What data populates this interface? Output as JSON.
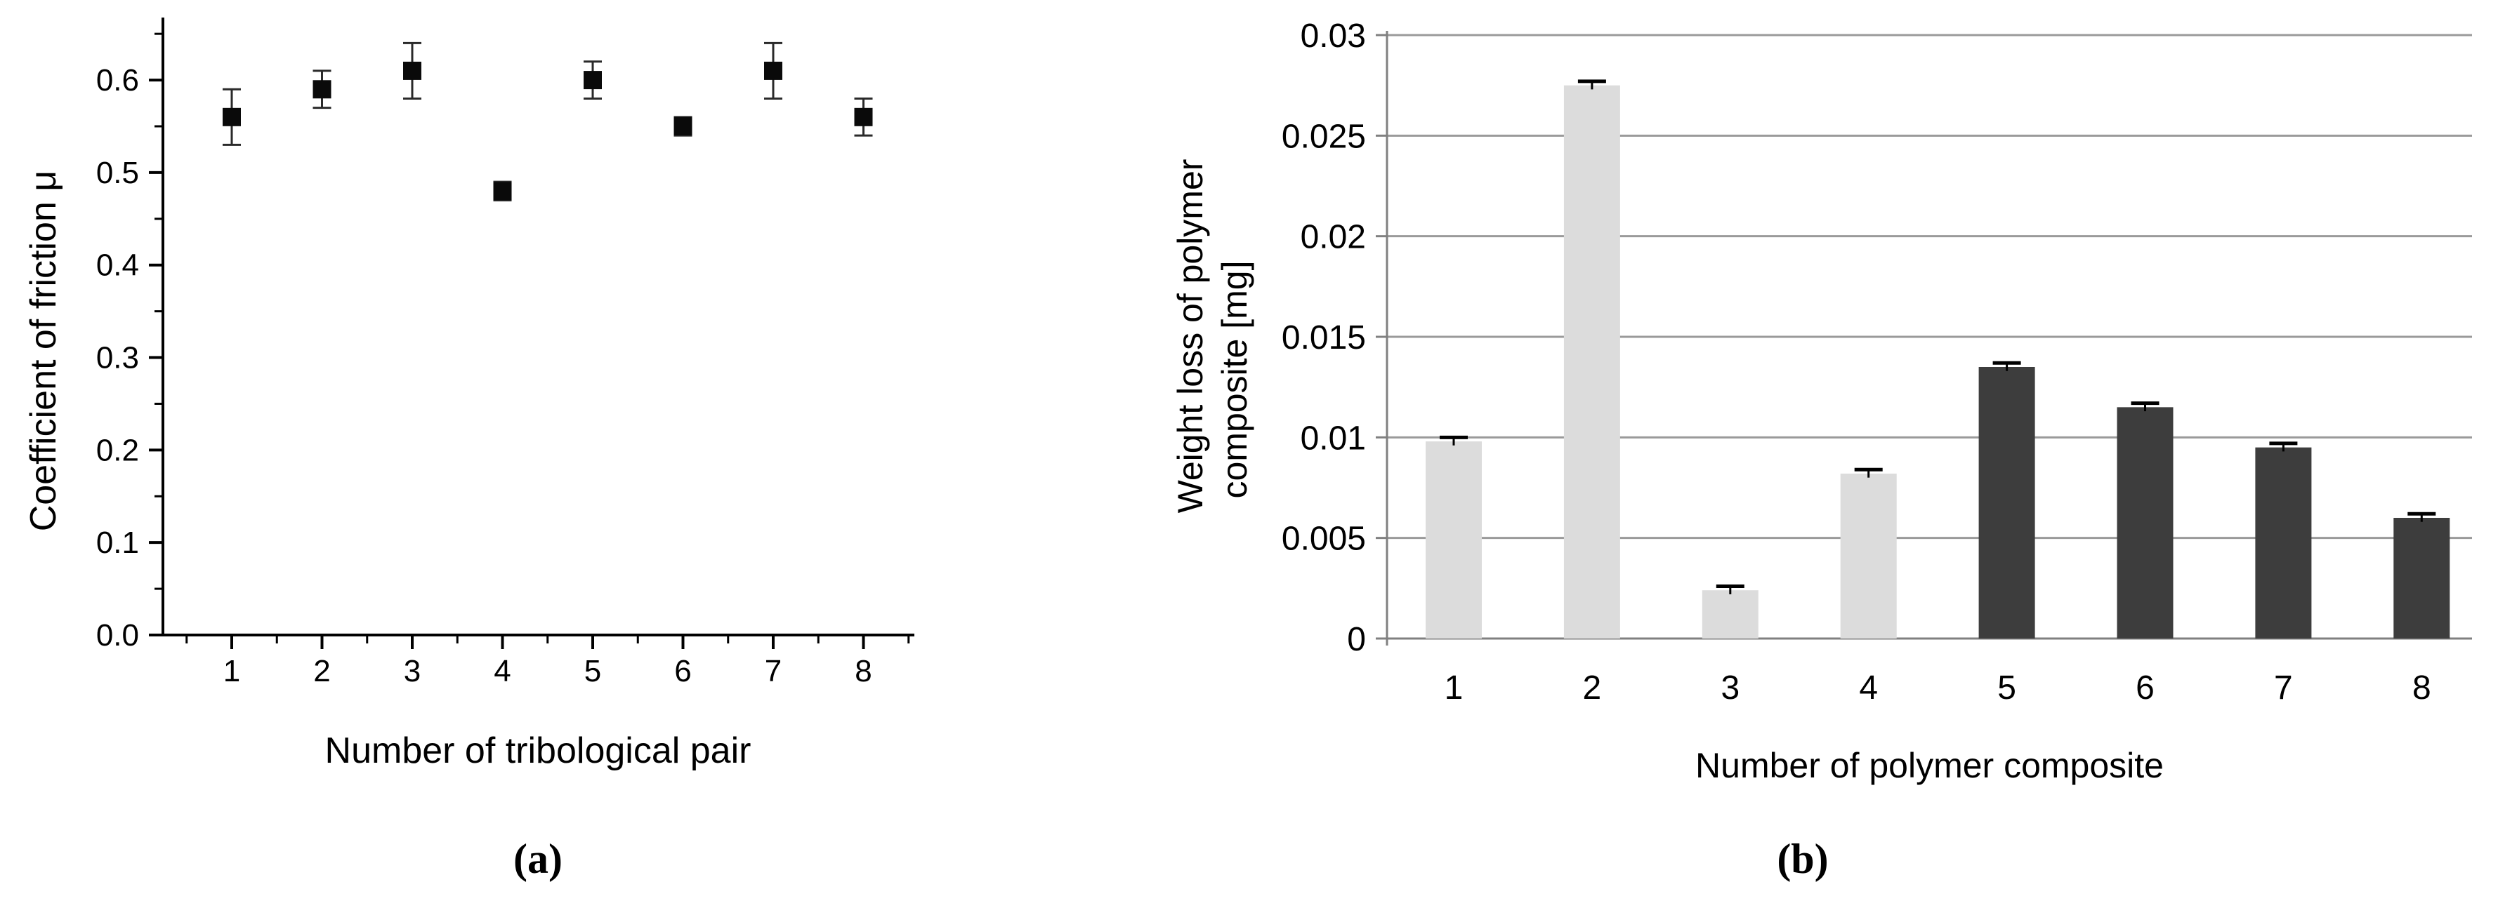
{
  "figure": {
    "captions": {
      "a": "(a)",
      "b": "(b)"
    }
  },
  "chart_data": [
    {
      "id": "friction-scatter",
      "type": "scatter",
      "title": "",
      "xlabel": "Number of tribological pair",
      "ylabel": "Coefficient of friction μ",
      "caption": "(a)",
      "x": [
        1,
        2,
        3,
        4,
        5,
        6,
        7,
        8
      ],
      "y": [
        0.56,
        0.59,
        0.61,
        0.48,
        0.6,
        0.55,
        0.61,
        0.56
      ],
      "yerr": [
        0.03,
        0.02,
        0.03,
        0.01,
        0.02,
        0.01,
        0.03,
        0.02
      ],
      "xlim": [
        0.25,
        8.75
      ],
      "ylim": [
        0,
        0.66
      ],
      "yticks": [
        0.0,
        0.1,
        0.2,
        0.3,
        0.4,
        0.5,
        0.6
      ],
      "ytick_labels": [
        "0.0",
        "0.1",
        "0.2",
        "0.3",
        "0.4",
        "0.5",
        "0.6"
      ],
      "y_minor_ticks": [
        0.05,
        0.15,
        0.25,
        0.35,
        0.45,
        0.55,
        0.65
      ],
      "xticks": [
        1,
        2,
        3,
        4,
        5,
        6,
        7,
        8
      ],
      "xtick_labels": [
        "1",
        "2",
        "3",
        "4",
        "5",
        "6",
        "7",
        "8"
      ],
      "x_minor_ticks": [
        0.5,
        1.5,
        2.5,
        3.5,
        4.5,
        5.5,
        6.5,
        7.5,
        8.5
      ],
      "grid": false,
      "legend": null,
      "marker": "square",
      "marker_color": "#0a0a0a",
      "error_bar_color": "#2a2a2a",
      "axis_color": "#000000"
    },
    {
      "id": "weight-loss-bar",
      "type": "bar",
      "title": "",
      "xlabel": "Number of polymer composite",
      "ylabel_lines": [
        "Weight  loss of polymer",
        "composite [mg]"
      ],
      "caption": "(b)",
      "categories": [
        "1",
        "2",
        "3",
        "4",
        "5",
        "6",
        "7",
        "8"
      ],
      "values": [
        0.0098,
        0.0275,
        0.0024,
        0.0082,
        0.0135,
        0.0115,
        0.0095,
        0.006
      ],
      "errors": [
        0.0002,
        0.0002,
        0.0002,
        0.0002,
        0.0002,
        0.0002,
        0.0002,
        0.0002
      ],
      "bar_colors": [
        "#dcdcdc",
        "#dcdcdc",
        "#dcdcdc",
        "#dcdcdc",
        "#3d3d3d",
        "#3d3d3d",
        "#3d3d3d",
        "#3d3d3d"
      ],
      "ylim": [
        0,
        0.03
      ],
      "yticks": [
        0,
        0.005,
        0.01,
        0.015,
        0.02,
        0.025,
        0.03
      ],
      "ytick_labels": [
        "0",
        "0.005",
        "0.01",
        "0.015",
        "0.02",
        "0.025",
        "0.03"
      ],
      "grid": true,
      "gridline_color": "#9a9a9a",
      "axis_color": "#808080",
      "error_bar_color": "#000000",
      "legend": null
    }
  ]
}
